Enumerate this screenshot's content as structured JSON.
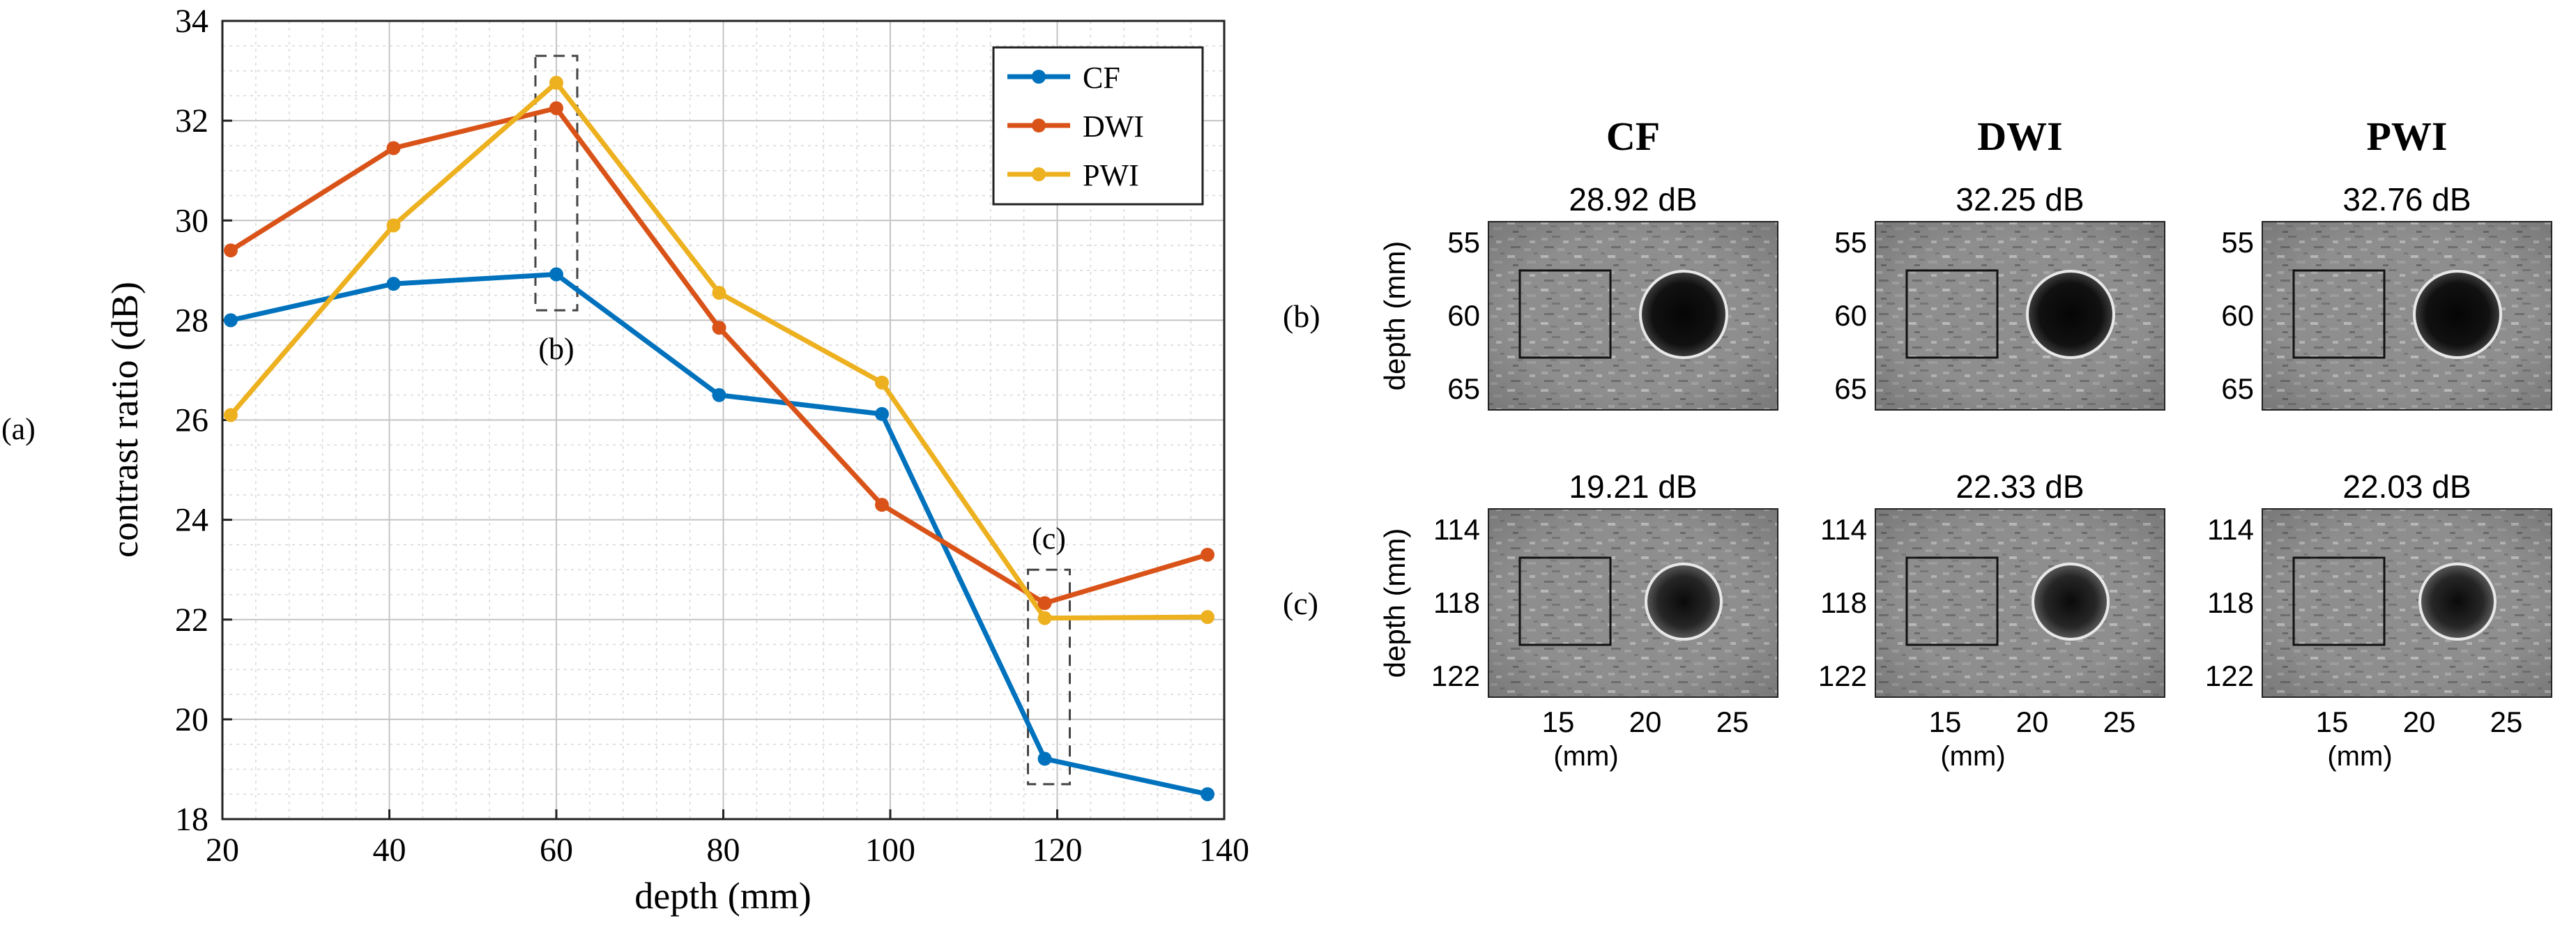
{
  "panel_labels": {
    "a": "(a)",
    "b": "(b)",
    "c": "(c)"
  },
  "chart_data": {
    "type": "line",
    "title": "",
    "xlabel": "depth (mm)",
    "ylabel": "contrast ratio (dB)",
    "xlim": [
      20,
      140
    ],
    "ylim": [
      18,
      34
    ],
    "xticks": [
      20,
      40,
      60,
      80,
      100,
      120,
      140
    ],
    "yticks": [
      18,
      20,
      22,
      24,
      26,
      28,
      30,
      32,
      34
    ],
    "grid": true,
    "legend_position": "top-right",
    "x": [
      21,
      40.5,
      60,
      79.5,
      99,
      118.5,
      138
    ],
    "series": [
      {
        "name": "CF",
        "color": "#0072BD",
        "values": [
          28.0,
          28.73,
          28.92,
          26.5,
          26.12,
          19.21,
          18.5
        ]
      },
      {
        "name": "DWI",
        "color": "#D95319",
        "values": [
          29.4,
          31.45,
          32.25,
          27.85,
          24.3,
          22.33,
          23.3
        ]
      },
      {
        "name": "PWI",
        "color": "#EDB120",
        "values": [
          26.1,
          29.9,
          32.76,
          28.55,
          26.75,
          22.03,
          22.05
        ]
      }
    ],
    "annotations": [
      {
        "label": "(b)",
        "x": 60,
        "y_range": [
          28.2,
          33.3
        ]
      },
      {
        "label": "(c)",
        "x": 119,
        "y_range": [
          18.7,
          23.0
        ]
      }
    ]
  },
  "image_grid": {
    "columns": [
      {
        "name": "CF",
        "values_db": {
          "b": "28.92 dB",
          "c": "19.21 dB"
        }
      },
      {
        "name": "DWI",
        "values_db": {
          "b": "32.25 dB",
          "c": "22.33 dB"
        }
      },
      {
        "name": "PWI",
        "values_db": {
          "b": "32.76 dB",
          "c": "22.03 dB"
        }
      }
    ],
    "rows": [
      {
        "key": "b",
        "ylabel": "depth (mm)",
        "yticks": [
          "55",
          "60",
          "65"
        ]
      },
      {
        "key": "c",
        "ylabel": "depth (mm)",
        "yticks": [
          "114",
          "118",
          "122"
        ]
      }
    ],
    "xticks": [
      "15",
      "20",
      "25"
    ],
    "xlabel": "(mm)"
  }
}
